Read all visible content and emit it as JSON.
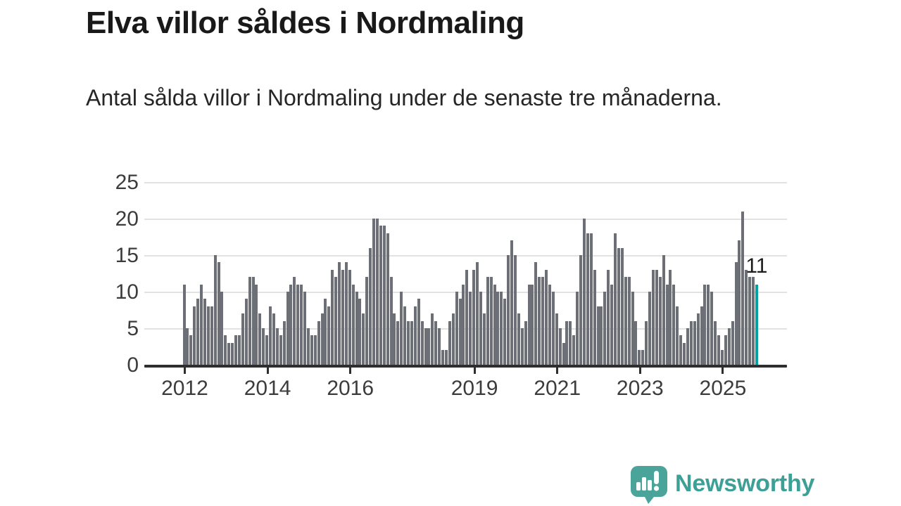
{
  "header": {
    "title": "Elva villor såldes i Nordmaling",
    "subtitle": "Antal sålda villor i Nordmaling under de senaste tre månaderna."
  },
  "chart_data": {
    "type": "bar",
    "description": "Antal sålda villor i Nordmaling, rullande tremånadersperioder, månadsvis",
    "x_start_year": 2012,
    "values": [
      11,
      5,
      4,
      8,
      9,
      11,
      9,
      8,
      8,
      15,
      14,
      10,
      4,
      3,
      3,
      4,
      4,
      7,
      9,
      12,
      12,
      11,
      7,
      5,
      4,
      8,
      7,
      5,
      4,
      6,
      10,
      11,
      12,
      11,
      11,
      10,
      5,
      4,
      4,
      6,
      7,
      9,
      8,
      13,
      12,
      14,
      13,
      14,
      13,
      11,
      10,
      9,
      7,
      12,
      16,
      20,
      20,
      19,
      19,
      18,
      12,
      7,
      6,
      10,
      8,
      6,
      6,
      8,
      9,
      6,
      5,
      5,
      7,
      6,
      5,
      2,
      2,
      6,
      7,
      10,
      9,
      11,
      13,
      10,
      13,
      14,
      10,
      7,
      12,
      12,
      11,
      10,
      10,
      9,
      15,
      17,
      15,
      7,
      5,
      6,
      11,
      11,
      14,
      12,
      12,
      13,
      11,
      10,
      7,
      5,
      3,
      6,
      6,
      4,
      10,
      15,
      20,
      18,
      18,
      13,
      8,
      8,
      10,
      13,
      11,
      18,
      16,
      16,
      12,
      12,
      10,
      6,
      2,
      2,
      6,
      10,
      13,
      13,
      12,
      15,
      11,
      13,
      11,
      8,
      4,
      3,
      5,
      6,
      6,
      7,
      8,
      11,
      11,
      10,
      6,
      4,
      2,
      4,
      5,
      6,
      14,
      17,
      21,
      13,
      12,
      12,
      11
    ],
    "last_value_label": "11",
    "highlight_last": true,
    "ylim": [
      0,
      25
    ],
    "yticks": [
      0,
      5,
      10,
      15,
      20,
      25
    ],
    "xtick_years": [
      2012,
      2014,
      2016,
      2019,
      2021,
      2023,
      2025
    ],
    "grid": true,
    "legend": "none",
    "bar_color": "#6c6f75",
    "highlight_color": "#00a3a4",
    "axis_color": "#2e2e2e",
    "grid_color": "#e2e2e2",
    "label_color": "#3c3c3c"
  },
  "footer": {
    "brand": "Newsworthy",
    "brand_color": "#3da096",
    "logo_icon": "bar-chart-pin-icon"
  }
}
